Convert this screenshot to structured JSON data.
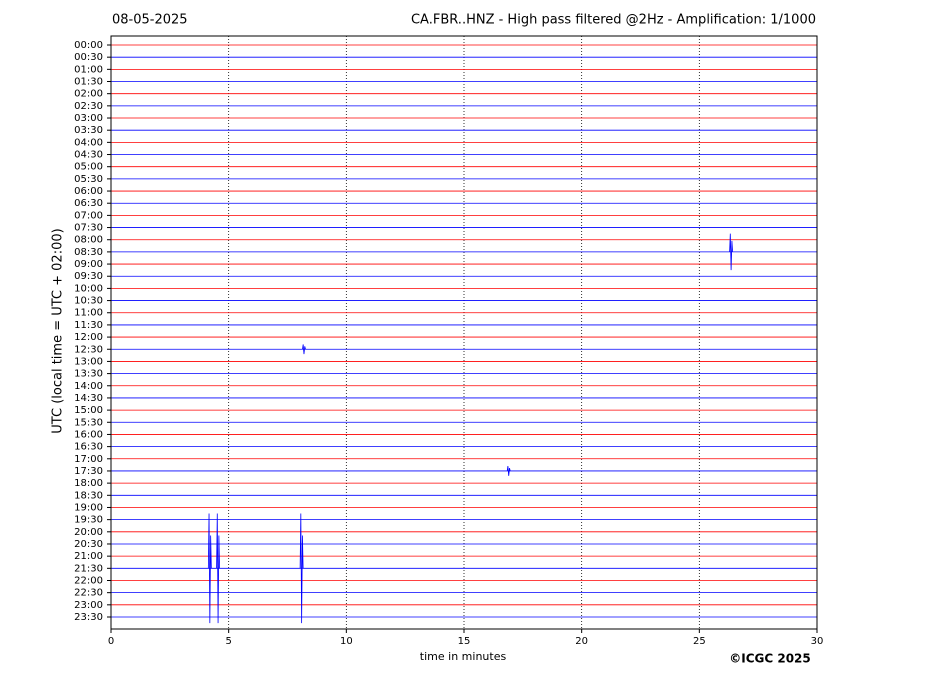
{
  "chart_data": {
    "type": "helicorder",
    "date": "08-05-2025",
    "title": "CA.FBR..HNZ - High pass filtered @2Hz - Amplification: 1/1000",
    "ylabel": "UTC (local time = UTC + 02:00)",
    "xlabel": "time in minutes",
    "copyright": "©ICGC 2025",
    "xlim": [
      0,
      30
    ],
    "xticks": [
      0,
      5,
      10,
      15,
      20,
      25,
      30
    ],
    "grid": true,
    "colors": [
      "#ff0000",
      "#0000ff"
    ],
    "rows": [
      "00:00",
      "00:30",
      "01:00",
      "01:30",
      "02:00",
      "02:30",
      "03:00",
      "03:30",
      "04:00",
      "04:30",
      "05:00",
      "05:30",
      "06:00",
      "06:30",
      "07:00",
      "07:30",
      "08:00",
      "08:30",
      "09:00",
      "09:30",
      "10:00",
      "10:30",
      "11:00",
      "11:30",
      "12:00",
      "12:30",
      "13:00",
      "13:30",
      "14:00",
      "14:30",
      "15:00",
      "15:30",
      "16:00",
      "16:30",
      "17:00",
      "17:30",
      "18:00",
      "18:30",
      "19:00",
      "19:30",
      "20:00",
      "20:30",
      "21:00",
      "21:30",
      "22:00",
      "22:30",
      "23:00",
      "23:30"
    ],
    "events": [
      {
        "row": 17,
        "x": 26.35,
        "amplitude": 1.5
      },
      {
        "row": 25,
        "x": 8.2,
        "amplitude": 0.4
      },
      {
        "row": 35,
        "x": 16.9,
        "amplitude": 0.4
      },
      {
        "row": 43,
        "x": 4.2,
        "amplitude": 4.5
      },
      {
        "row": 43,
        "x": 4.55,
        "amplitude": 4.5
      },
      {
        "row": 43,
        "x": 8.1,
        "amplitude": 4.5
      }
    ]
  }
}
